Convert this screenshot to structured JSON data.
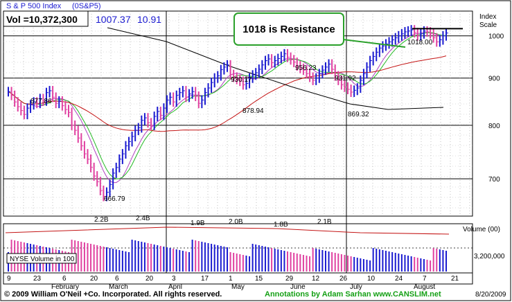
{
  "header": {
    "index_name": "S & P 500 Index",
    "symbol": "(0S&P5)",
    "vol_label": "Vol =10,372,300",
    "last_price": "1007.37",
    "change": "10.91"
  },
  "callout": {
    "text": "1018 is Resistance"
  },
  "right_scale": {
    "title_line1": "Index",
    "title_line2": "Scale",
    "volume_title": "Volume (00)",
    "volume_tick": "3,200,000"
  },
  "volume_legend": "NYSE  Volume in 100",
  "footer": {
    "copyright": "© 2009 William O'Neil +Co. Incorporated. All rights reserved.",
    "annotation": "Annotations by Adam Sarhan www.CANSLIM.net",
    "date": "8/20/2009"
  },
  "chart_data": {
    "type": "ohlc",
    "title": "S & P 500 Index",
    "price_axis": {
      "ticks": [
        700,
        800,
        900,
        1000
      ],
      "ylim": [
        640,
        1060
      ],
      "scale": "log"
    },
    "x_day_ticks": [
      "9",
      "23",
      "6",
      "20",
      "6",
      "20",
      "3",
      "17",
      "1",
      "15",
      "29",
      "12",
      "26",
      "10",
      "24",
      "7",
      "21"
    ],
    "x_month_labels": [
      "February",
      "March",
      "April",
      "May",
      "June",
      "July",
      "August"
    ],
    "price_annotations": [
      {
        "label": "877.86",
        "value": 877.86
      },
      {
        "label": "666.79",
        "value": 666.79
      },
      {
        "label": "930.17",
        "value": 930.17
      },
      {
        "label": "878.94",
        "value": 878.94
      },
      {
        "label": "956.23",
        "value": 956.23
      },
      {
        "label": "931.92",
        "value": 931.92
      },
      {
        "label": "869.32",
        "value": 869.32
      },
      {
        "label": "1018.00",
        "value": 1018.0
      }
    ],
    "volume_annotations": [
      "2.2B",
      "2.4B",
      "1.9B",
      "2.0B",
      "1.8B",
      "2.1B"
    ],
    "resistance_level": 1018,
    "closes": [
      870,
      862,
      848,
      838,
      830,
      822,
      835,
      842,
      848,
      845,
      855,
      850,
      868,
      872,
      858,
      845,
      850,
      840,
      832,
      826,
      800,
      790,
      775,
      760,
      745,
      735,
      720,
      705,
      695,
      680,
      670,
      677,
      690,
      710,
      720,
      735,
      745,
      760,
      768,
      778,
      790,
      795,
      810,
      815,
      805,
      800,
      818,
      828,
      820,
      835,
      852,
      858,
      848,
      862,
      868,
      872,
      858,
      865,
      870,
      860,
      845,
      852,
      868,
      878,
      890,
      900,
      905,
      919,
      925,
      930,
      908,
      902,
      897,
      893,
      885,
      888,
      900,
      907,
      912,
      920,
      930,
      940,
      944,
      935,
      940,
      945,
      950,
      956,
      948,
      942,
      936,
      928,
      922,
      918,
      910,
      902,
      895,
      900,
      910,
      918,
      925,
      932,
      920,
      905,
      895,
      885,
      880,
      875,
      869,
      873,
      878,
      895,
      910,
      925,
      940,
      950,
      960,
      970,
      975,
      980,
      985,
      990,
      995,
      1000,
      1005,
      1010,
      1012,
      1015,
      1008,
      1000,
      1005,
      1012,
      1010,
      1005,
      995,
      985,
      990,
      1000,
      1007
    ],
    "series": [
      {
        "name": "50-day moving average",
        "color": "#22bb22"
      },
      {
        "name": "200-day moving average",
        "color": "#000000"
      }
    ]
  },
  "colors": {
    "up_bar": "#1a1ad0",
    "down_bar": "#e040a0",
    "ma_short": "#22bb22",
    "ma_mid": "#c41414",
    "ma_long": "#000000",
    "ma_thin": "#b040c0",
    "callout_border": "#2aa02a",
    "footer_green": "#15a015"
  }
}
